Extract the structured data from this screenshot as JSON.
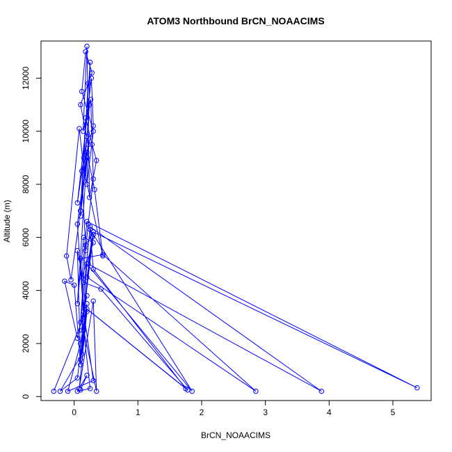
{
  "chart_data": {
    "type": "line",
    "title": "ATOM3 Northbound BrCN_NOAACIMS",
    "xlabel": "BrCN_NOAACIMS",
    "ylabel": "Altitude (m)",
    "xlim": [
      -0.52,
      5.6
    ],
    "ylim": [
      -150,
      13400
    ],
    "xticks": [
      0,
      1,
      2,
      3,
      4,
      5
    ],
    "xtick_labels": [
      "0",
      "1",
      "2",
      "3",
      "4",
      "5"
    ],
    "yticks": [
      0,
      2000,
      4000,
      6000,
      8000,
      10000,
      12000
    ],
    "ytick_labels": [
      "0",
      "2000",
      "4000",
      "6000",
      "8000",
      "10000",
      "12000"
    ],
    "grid": false,
    "marker": "open-circle",
    "series": [
      {
        "color": "#0000ff",
        "x": [
          -0.32,
          0.15,
          0.05,
          0.22,
          0.1,
          0.28,
          0.18,
          0.12,
          0.3,
          0.2,
          0.25,
          0.15,
          0.22,
          0.1,
          0.18,
          0.28,
          0.35,
          0.24,
          0.2,
          0.14,
          0.26,
          0.3,
          0.22,
          0.18,
          0.12,
          0.3,
          0.27,
          0.05,
          0.2,
          0.24,
          0.1,
          0.2,
          0.32,
          0.45,
          0.15,
          0.08,
          -0.12,
          -0.05,
          0.1,
          0.2,
          0.05,
          0.15,
          0.3,
          0.12,
          0.2,
          5.38,
          0.3,
          0.18,
          0.1,
          0.25,
          3.88,
          0.22,
          0.28,
          0.15,
          0.1,
          0.45,
          2.85,
          0.2,
          0.3,
          0.12,
          0.2,
          1.85,
          0.25,
          0.3,
          1.75,
          0.2,
          0.1,
          0.05,
          0.15,
          0.42,
          1.78,
          0.15,
          0.1,
          0.0,
          -0.15,
          0.05,
          0.2,
          0.15,
          0.3,
          -0.1,
          0.1,
          0.2,
          0.05,
          -0.22,
          0.12,
          0.2,
          0.08,
          0.3,
          0.35,
          0.15,
          0.25,
          0.05,
          0.2,
          0.1
        ],
        "y": [
          200,
          3000,
          6500,
          9500,
          11000,
          12200,
          13000,
          11500,
          10000,
          8000,
          12600,
          9000,
          11800,
          7000,
          10500,
          9500,
          8900,
          7500,
          13200,
          10000,
          11200,
          8200,
          6500,
          5500,
          8500,
          10200,
          12000,
          7300,
          9800,
          11000,
          6800,
          9200,
          7800,
          5300,
          8600,
          10100,
          5300,
          4400,
          7000,
          9000,
          3500,
          6000,
          5800,
          4500,
          6600,
          330,
          6200,
          5700,
          2800,
          6400,
          200,
          5000,
          6000,
          3200,
          5200,
          5350,
          200,
          4500,
          6100,
          2500,
          5000,
          200,
          6300,
          4800,
          300,
          3300,
          1400,
          5500,
          4300,
          4050,
          250,
          3400,
          1200,
          4200,
          4350,
          2200,
          3800,
          3200,
          600,
          200,
          2000,
          3500,
          700,
          200,
          1600,
          3200,
          300,
          3600,
          200,
          2500,
          300,
          200,
          800,
          250
        ]
      }
    ]
  }
}
